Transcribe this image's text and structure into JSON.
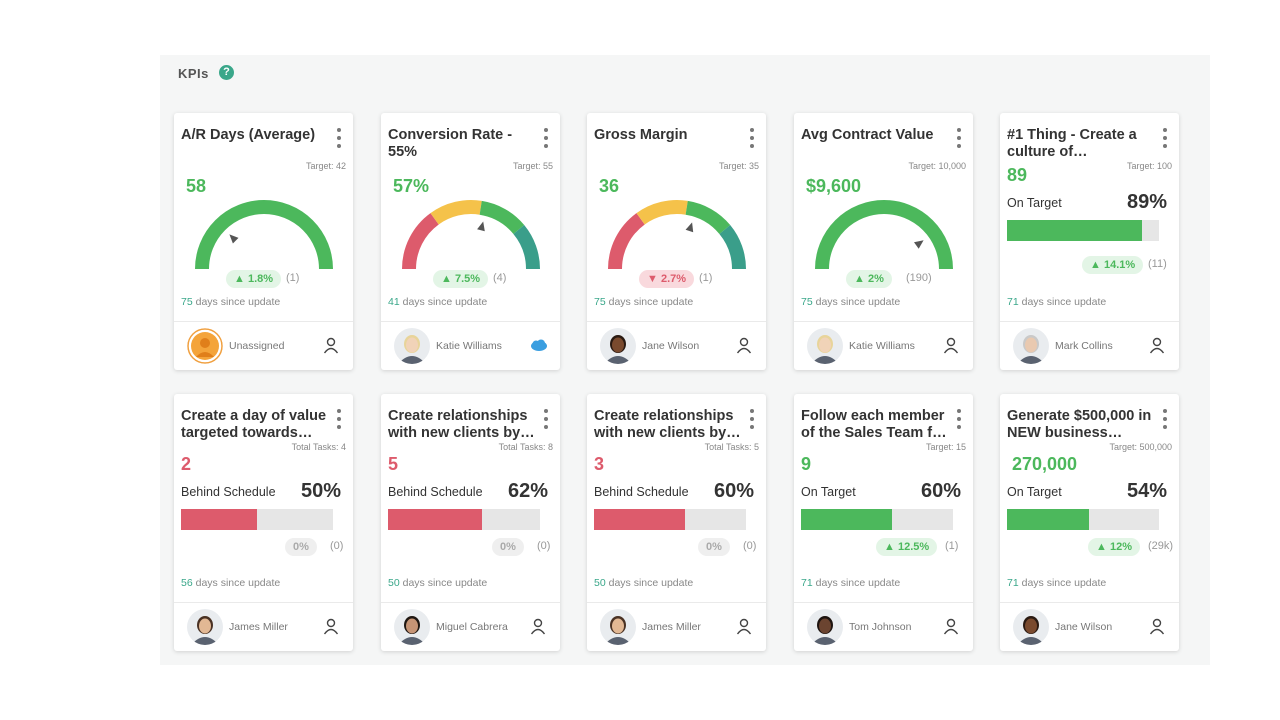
{
  "header": {
    "title": "KPIs",
    "help_label": "?"
  },
  "colors": {
    "green": "#4cb85c",
    "red": "#dd5b6c",
    "yellow": "#f5c24a",
    "teal": "#3a9e8a",
    "track": "#e6e6e6"
  },
  "gauge_cards": [
    {
      "title": "A/R Days (Average)",
      "target": "Target: 42",
      "value": "58",
      "value_color": "green",
      "gauge_style": "solid-green",
      "needle_fraction": 0.25,
      "change": "1.8%",
      "change_dir": "up",
      "count": "(1)",
      "days": "75",
      "days_suffix": " days since update",
      "owner": "Unassigned",
      "avatar": "unassigned-avatar"
    },
    {
      "title": "Conversion Rate - 55%",
      "target": "Target: 55",
      "value": "57%",
      "value_color": "green",
      "gauge_style": "multi",
      "needle_fraction": 0.58,
      "change": "7.5%",
      "change_dir": "up",
      "count": "(4)",
      "days": "41",
      "days_suffix": " days since update",
      "owner": "Katie Williams",
      "avatar": "katie-avatar",
      "salesforce": true
    },
    {
      "title": "Gross Margin",
      "target": "Target: 35",
      "value": "36",
      "value_color": "green",
      "gauge_style": "multi",
      "needle_fraction": 0.6,
      "change": "2.7%",
      "change_dir": "down",
      "count": "(1)",
      "days": "75",
      "days_suffix": " days since update",
      "owner": "Jane Wilson",
      "avatar": "jane-avatar"
    },
    {
      "title": "Avg Contract Value",
      "target": "Target: 10,000",
      "value": "$9,600",
      "value_color": "green",
      "gauge_style": "solid-green",
      "needle_fraction": 0.8,
      "change": "2%",
      "change_dir": "up",
      "count": "(190)",
      "days": "75",
      "days_suffix": " days since update",
      "owner": "Katie Williams",
      "avatar": "katie-avatar"
    }
  ],
  "bar_cards": [
    {
      "title": "#1 Thing - Create a culture of…",
      "target": "Target: 100",
      "value": "89",
      "value_color": "green",
      "status": "On Target",
      "percent": "89%",
      "fill": 0.89,
      "fill_color": "green",
      "change": "14.1%",
      "change_dir": "up",
      "count": "(11)",
      "days": "71",
      "days_suffix": " days since update",
      "owner": "Mark Collins",
      "avatar": "mark-avatar",
      "row": 0,
      "col": 4
    },
    {
      "title": "Create a day of value targeted towards…",
      "target": "Total Tasks: 4",
      "value": "2",
      "value_color": "red",
      "status": "Behind Schedule",
      "percent": "50%",
      "fill": 0.5,
      "fill_color": "red",
      "change": "0%",
      "change_dir": "neutral",
      "count": "(0)",
      "days": "56",
      "days_suffix": " days since update",
      "owner": "James Miller",
      "avatar": "james-avatar",
      "row": 1,
      "col": 0
    },
    {
      "title": "Create relationships with new clients by…",
      "target": "Total Tasks: 8",
      "value": "5",
      "value_color": "red",
      "status": "Behind Schedule",
      "percent": "62%",
      "fill": 0.62,
      "fill_color": "red",
      "change": "0%",
      "change_dir": "neutral",
      "count": "(0)",
      "days": "50",
      "days_suffix": " days since update",
      "owner": "Miguel Cabrera",
      "avatar": "miguel-avatar",
      "row": 1,
      "col": 1
    },
    {
      "title": "Create relationships with new clients by…",
      "target": "Total Tasks: 5",
      "value": "3",
      "value_color": "red",
      "status": "Behind Schedule",
      "percent": "60%",
      "fill": 0.6,
      "fill_color": "red",
      "change": "0%",
      "change_dir": "neutral",
      "count": "(0)",
      "days": "50",
      "days_suffix": " days since update",
      "owner": "James Miller",
      "avatar": "james-avatar",
      "row": 1,
      "col": 2
    },
    {
      "title": "Follow each member of the Sales Team f…",
      "target": "Target: 15",
      "value": "9",
      "value_color": "green",
      "status": "On Target",
      "percent": "60%",
      "fill": 0.6,
      "fill_color": "green",
      "change": "12.5%",
      "change_dir": "up",
      "count": "(1)",
      "days": "71",
      "days_suffix": " days since update",
      "owner": "Tom Johnson",
      "avatar": "tom-avatar",
      "row": 1,
      "col": 3
    },
    {
      "title": "Generate $500,000 in NEW business…",
      "target": "Target: 500,000",
      "value": "270,000",
      "value_color": "green",
      "status": "On Target",
      "percent": "54%",
      "fill": 0.54,
      "fill_color": "green",
      "change": "12%",
      "change_dir": "up",
      "count": "(29k)",
      "days": "71",
      "days_suffix": " days since update",
      "owner": "Jane Wilson",
      "avatar": "jane-avatar",
      "row": 1,
      "col": 4
    }
  ]
}
